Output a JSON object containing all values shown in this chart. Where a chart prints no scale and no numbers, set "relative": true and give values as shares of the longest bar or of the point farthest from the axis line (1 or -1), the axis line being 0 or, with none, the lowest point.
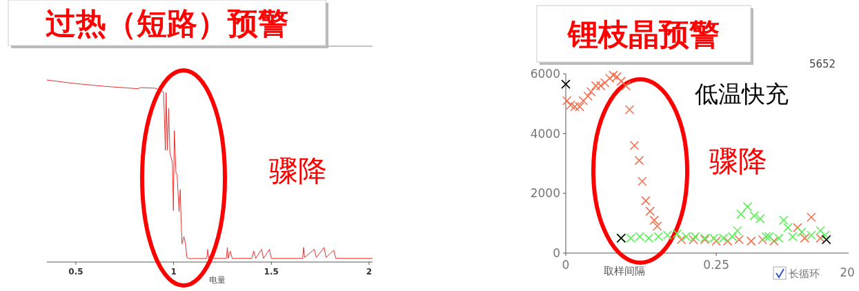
{
  "chart_data": [
    {
      "type": "line",
      "title": "过热（短路）预警",
      "xlabel": "电量",
      "relative": true,
      "tick_labels": "x",
      "xlim": [
        0.352,
        2.018
      ],
      "xticks": [
        0.5,
        1,
        1.5,
        2
      ],
      "annotations": [
        "骤降"
      ],
      "series": [
        {
          "color": "#e8312e",
          "x": [
            0.352,
            0.5,
            0.65,
            0.817,
            0.83,
            0.905,
            0.937,
            0.949,
            0.958,
            0.962,
            0.968,
            0.975,
            0.981,
            0.994,
            0.999,
            1.004,
            1.012,
            1.018,
            1.028,
            1.034,
            1.038,
            1.043,
            1.053,
            1.061,
            1.068,
            1.08,
            1.17,
            1.175,
            1.18,
            1.27,
            1.275,
            1.28,
            1.29,
            1.3,
            1.4,
            1.41,
            1.42,
            1.45,
            1.46,
            1.49,
            1.5,
            1.66,
            1.665,
            1.67,
            1.72,
            1.73,
            1.77,
            1.78,
            1.82,
            1.83,
            2.018
          ],
          "values": [
            1.0,
            0.98,
            0.965,
            0.952,
            0.958,
            0.955,
            0.942,
            0.932,
            0.614,
            0.93,
            0.614,
            0.844,
            0.6,
            0.547,
            0.283,
            0.722,
            0.492,
            0.479,
            0.276,
            0.398,
            0.249,
            0.1,
            0.14,
            0.1,
            0.026,
            0.019,
            0.02,
            0.07,
            0.02,
            0.02,
            0.08,
            0.02,
            0.06,
            0.02,
            0.02,
            0.06,
            0.02,
            0.07,
            0.02,
            0.07,
            0.02,
            0.02,
            0.08,
            0.025,
            0.07,
            0.025,
            0.08,
            0.025,
            0.065,
            0.02,
            0.02
          ]
        }
      ]
    },
    {
      "type": "scatter",
      "title": "锂枝晶预警",
      "xlabel": "取样间隔",
      "marker": "cross",
      "xlim": [
        0,
        0.47
      ],
      "xticks": [
        0,
        0.25
      ],
      "ylim": [
        0,
        6000
      ],
      "yticks": [
        0,
        2000,
        4000,
        6000
      ],
      "annotations": [
        "低温快充",
        "骤降",
        "5652",
        "长循环",
        "20"
      ],
      "series": [
        {
          "color": "#f4704f",
          "x": [
            0.002,
            0.008,
            0.015,
            0.023,
            0.029,
            0.037,
            0.042,
            0.05,
            0.058,
            0.065,
            0.073,
            0.079,
            0.085,
            0.092,
            0.1,
            0.106,
            0.114,
            0.122,
            0.127,
            0.133,
            0.14,
            0.147,
            0.152,
            0.192,
            0.212,
            0.231,
            0.25,
            0.269,
            0.288,
            0.308,
            0.327,
            0.346,
            0.385,
            0.397,
            0.408,
            0.423,
            0.433
          ],
          "values": [
            5100,
            4950,
            4900,
            4900,
            5100,
            5250,
            5400,
            5600,
            5600,
            5700,
            5850,
            5950,
            5900,
            5750,
            5600,
            4800,
            3600,
            3100,
            2400,
            1750,
            1400,
            1100,
            900,
            450,
            450,
            450,
            400,
            400,
            450,
            400,
            450,
            400,
            850,
            500,
            1200,
            500,
            450
          ]
        },
        {
          "color": "#5ef05a",
          "x": [
            0.092,
            0.108,
            0.123,
            0.138,
            0.154,
            0.169,
            0.185,
            0.2,
            0.215,
            0.231,
            0.246,
            0.262,
            0.277,
            0.285,
            0.291,
            0.302,
            0.313,
            0.323,
            0.333,
            0.338,
            0.354,
            0.362,
            0.369,
            0.377,
            0.392,
            0.408,
            0.423,
            0.431
          ],
          "values": [
            500,
            500,
            550,
            500,
            550,
            600,
            650,
            550,
            550,
            500,
            500,
            500,
            550,
            750,
            1300,
            1550,
            1250,
            1150,
            550,
            550,
            500,
            1100,
            850,
            550,
            700,
            600,
            750,
            600
          ]
        },
        {
          "color": "#000000",
          "x": [
            0.0,
            0.092,
            0.433
          ],
          "values": [
            5650,
            500,
            450
          ]
        }
      ]
    }
  ]
}
